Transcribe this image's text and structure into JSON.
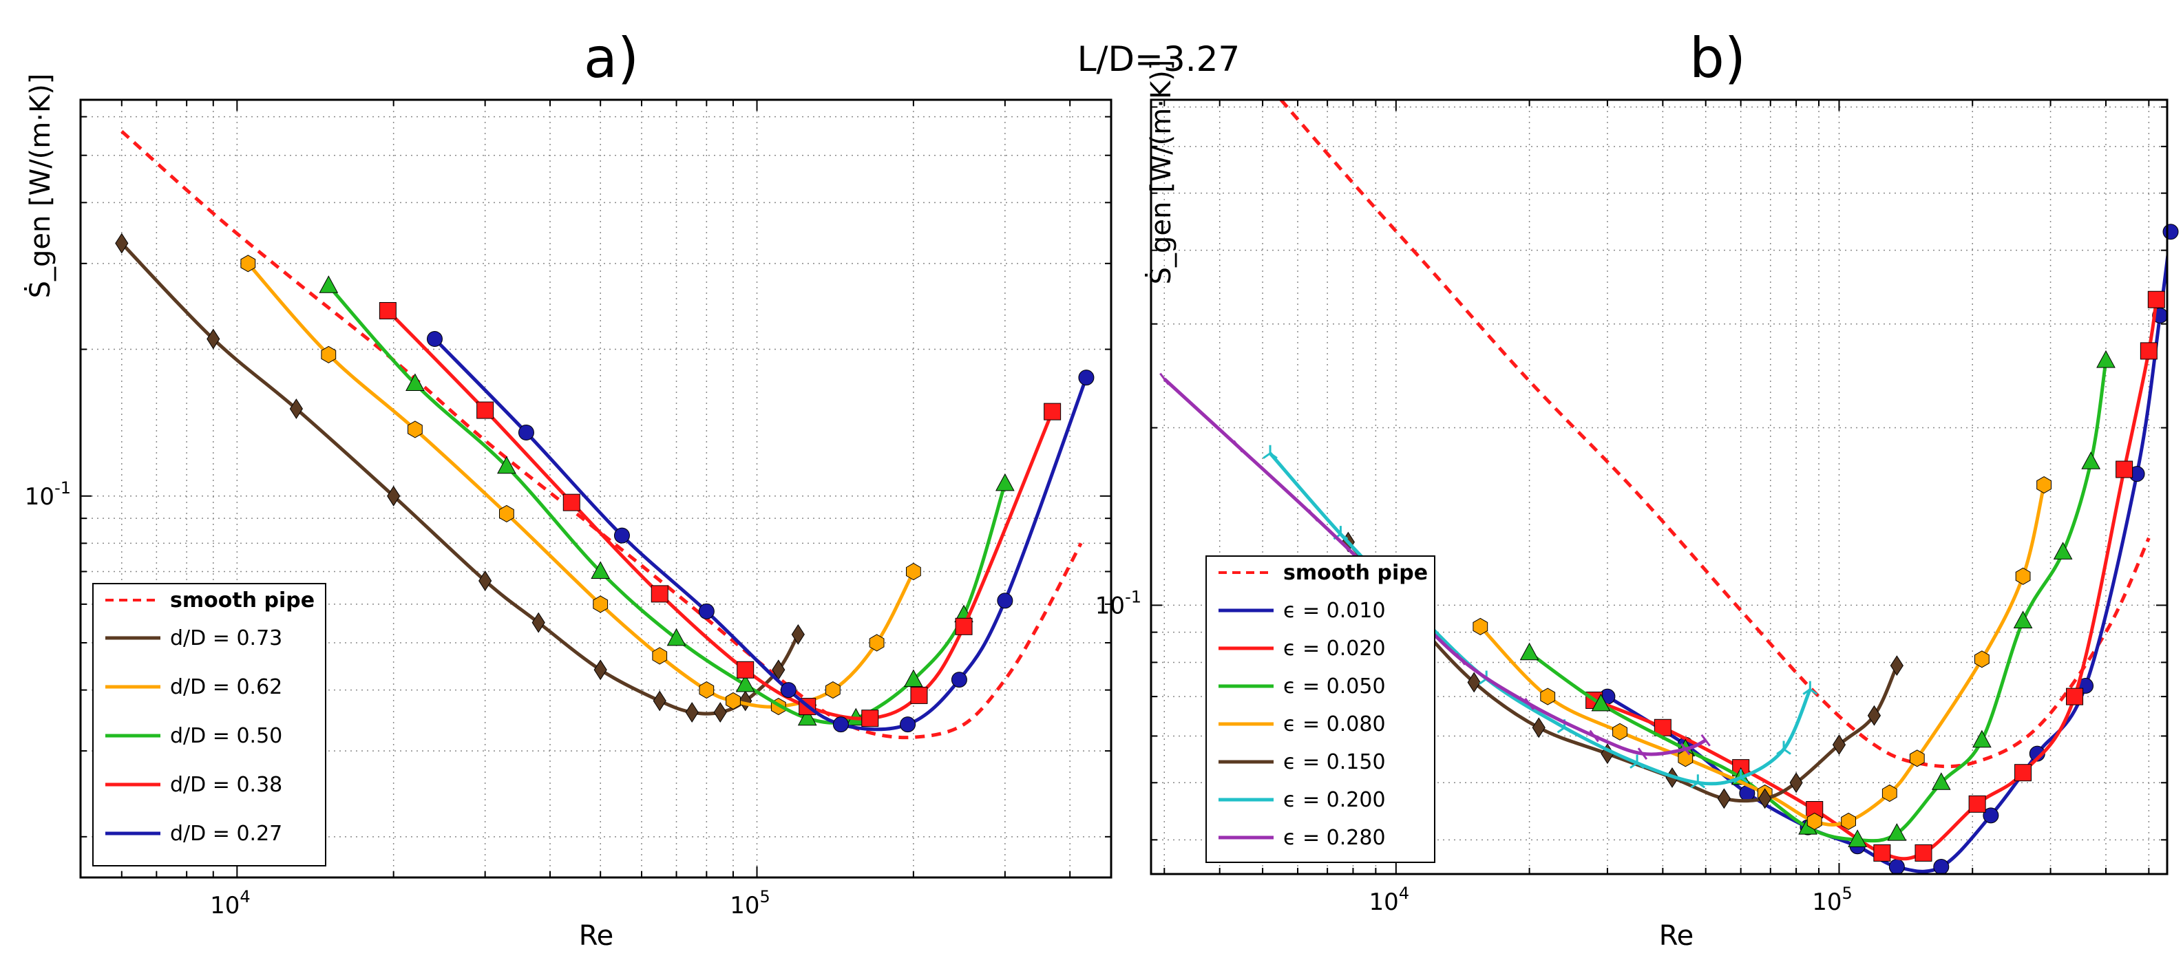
{
  "header": {
    "center_title": "L/D=3.27"
  },
  "chart_data": [
    {
      "type": "line",
      "panel_label": "a)",
      "xscale": "log",
      "yscale": "log",
      "xlim": [
        5000,
        480000
      ],
      "ylim": [
        0.0165,
        0.65
      ],
      "xlabel": "Re",
      "ylabel": "Ṡ_gen [W/(m·K)]",
      "grid": true,
      "legend_position": "lower-left",
      "xticks": [
        {
          "v": 10000,
          "base": "10",
          "exp": "4"
        },
        {
          "v": 100000,
          "base": "10",
          "exp": "5"
        }
      ],
      "yticks": [
        {
          "v": 0.1,
          "base": "10",
          "exp": "-1"
        }
      ],
      "series": [
        {
          "name": "smooth pipe",
          "color": "#ff1a1a",
          "dash": true,
          "marker": "none",
          "x": [
            6000,
            9000,
            13000,
            20000,
            30000,
            45000,
            60000,
            80000,
            100000,
            130000,
            160000,
            200000,
            250000,
            300000,
            350000,
            420000
          ],
          "y": [
            0.56,
            0.38,
            0.275,
            0.19,
            0.13,
            0.092,
            0.072,
            0.056,
            0.046,
            0.037,
            0.033,
            0.032,
            0.034,
            0.042,
            0.055,
            0.08
          ]
        },
        {
          "name": "d/D = 0.73",
          "color": "#5a3a22",
          "marker": "diamond",
          "x": [
            6000,
            9000,
            13000,
            20000,
            30000,
            38000,
            50000,
            65000,
            75000,
            85000,
            95000,
            110000,
            120000
          ],
          "y": [
            0.33,
            0.21,
            0.151,
            0.1,
            0.067,
            0.055,
            0.044,
            0.038,
            0.036,
            0.036,
            0.038,
            0.044,
            0.052
          ]
        },
        {
          "name": "d/D = 0.62",
          "color": "#ffa500",
          "marker": "hexagon",
          "x": [
            10500,
            15000,
            22000,
            33000,
            50000,
            65000,
            80000,
            90000,
            110000,
            140000,
            170000,
            200000
          ],
          "y": [
            0.3,
            0.195,
            0.137,
            0.092,
            0.06,
            0.047,
            0.04,
            0.038,
            0.037,
            0.04,
            0.05,
            0.07
          ]
        },
        {
          "name": "d/D = 0.50",
          "color": "#22bb22",
          "marker": "triangle",
          "x": [
            15000,
            22000,
            33000,
            50000,
            70000,
            95000,
            125000,
            155000,
            200000,
            250000,
            300000
          ],
          "y": [
            0.27,
            0.17,
            0.115,
            0.07,
            0.051,
            0.041,
            0.035,
            0.035,
            0.042,
            0.057,
            0.106
          ]
        },
        {
          "name": "d/D = 0.38",
          "color": "#ff1a1a",
          "marker": "square",
          "x": [
            19500,
            30000,
            44000,
            65000,
            95000,
            125000,
            165000,
            205000,
            250000,
            370000
          ],
          "y": [
            0.24,
            0.15,
            0.097,
            0.063,
            0.044,
            0.037,
            0.035,
            0.039,
            0.054,
            0.149
          ]
        },
        {
          "name": "d/D = 0.27",
          "color": "#1a1aaa",
          "marker": "circle",
          "x": [
            24000,
            36000,
            55000,
            80000,
            115000,
            145000,
            195000,
            245000,
            300000,
            430000
          ],
          "y": [
            0.21,
            0.135,
            0.083,
            0.058,
            0.04,
            0.034,
            0.034,
            0.042,
            0.061,
            0.175
          ]
        }
      ]
    },
    {
      "type": "line",
      "panel_label": "b)",
      "xscale": "log",
      "yscale": "log",
      "xlim": [
        2800,
        550000
      ],
      "ylim": [
        0.035,
        0.72
      ],
      "xlabel": "Re",
      "ylabel": "Ṡ_gen [W/(m·K)]",
      "grid": true,
      "legend_position": "lower-left",
      "xticks": [
        {
          "v": 10000,
          "base": "10",
          "exp": "4"
        },
        {
          "v": 100000,
          "base": "10",
          "exp": "5"
        }
      ],
      "yticks": [
        {
          "v": 0.1,
          "base": "10",
          "exp": "-1"
        }
      ],
      "series": [
        {
          "name": "smooth pipe",
          "color": "#ff1a1a",
          "dash": true,
          "marker": "none",
          "x": [
            5500,
            8000,
            12000,
            20000,
            35000,
            60000,
            90000,
            120000,
            150000,
            200000,
            280000,
            400000,
            500000
          ],
          "y": [
            0.72,
            0.52,
            0.37,
            0.24,
            0.155,
            0.098,
            0.07,
            0.058,
            0.054,
            0.054,
            0.062,
            0.09,
            0.13
          ]
        },
        {
          "name": "ϵ = 0.010",
          "color": "#1a1aaa",
          "marker": "circle",
          "x": [
            30000,
            45000,
            62000,
            85000,
            110000,
            135000,
            170000,
            220000,
            280000,
            360000,
            470000,
            530000,
            560000
          ],
          "y": [
            0.07,
            0.058,
            0.048,
            0.042,
            0.039,
            0.036,
            0.036,
            0.044,
            0.056,
            0.073,
            0.167,
            0.31,
            0.43
          ]
        },
        {
          "name": "ϵ = 0.020",
          "color": "#ff1a1a",
          "marker": "square",
          "x": [
            28000,
            40000,
            60000,
            88000,
            125000,
            155000,
            205000,
            260000,
            340000,
            440000,
            500000,
            520000
          ],
          "y": [
            0.069,
            0.062,
            0.053,
            0.045,
            0.038,
            0.038,
            0.046,
            0.052,
            0.07,
            0.17,
            0.27,
            0.33
          ]
        },
        {
          "name": "ϵ = 0.050",
          "color": "#22bb22",
          "marker": "triangle",
          "x": [
            20000,
            29000,
            45000,
            60000,
            85000,
            110000,
            135000,
            170000,
            210000,
            260000,
            320000,
            370000,
            400000
          ],
          "y": [
            0.083,
            0.068,
            0.057,
            0.051,
            0.042,
            0.04,
            0.041,
            0.05,
            0.059,
            0.094,
            0.123,
            0.175,
            0.26
          ]
        },
        {
          "name": "ϵ = 0.080",
          "color": "#ffa500",
          "marker": "hexagon",
          "x": [
            15500,
            22000,
            32000,
            45000,
            68000,
            88000,
            105000,
            130000,
            150000,
            210000,
            260000,
            290000
          ],
          "y": [
            0.092,
            0.07,
            0.061,
            0.055,
            0.048,
            0.043,
            0.043,
            0.048,
            0.055,
            0.081,
            0.112,
            0.16
          ]
        },
        {
          "name": "ϵ = 0.150",
          "color": "#5a3a22",
          "marker": "diamond",
          "x": [
            7800,
            10800,
            15000,
            21000,
            30000,
            42000,
            55000,
            68000,
            80000,
            100000,
            120000,
            135000
          ],
          "y": [
            0.128,
            0.096,
            0.074,
            0.062,
            0.056,
            0.051,
            0.047,
            0.047,
            0.05,
            0.058,
            0.065,
            0.079
          ]
        },
        {
          "name": "ϵ = 0.200",
          "color": "#22c0c8",
          "marker": "tri",
          "x": [
            5200,
            7500,
            11000,
            16000,
            24000,
            35000,
            48000,
            60000,
            75000,
            86000
          ],
          "y": [
            0.181,
            0.132,
            0.098,
            0.075,
            0.062,
            0.054,
            0.05,
            0.051,
            0.057,
            0.072
          ]
        },
        {
          "name": "ϵ = 0.280",
          "color": "#9b30b0",
          "marker": "tick",
          "x": [
            3000,
            4400,
            6500,
            9500,
            14000,
            20000,
            28000,
            36000,
            45000,
            50000
          ],
          "y": [
            0.242,
            0.186,
            0.142,
            0.108,
            0.081,
            0.068,
            0.06,
            0.056,
            0.057,
            0.059
          ]
        }
      ]
    }
  ]
}
